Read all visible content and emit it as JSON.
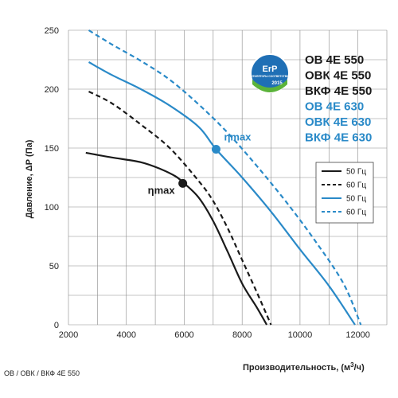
{
  "chart_data": {
    "type": "line",
    "xlabel": "Производительность, (м",
    "xlabel_sup": "3",
    "xlabel_tail": "/ч)",
    "ylabel": "Давление, ΔР (Па)",
    "xlim": [
      2000,
      13000
    ],
    "ylim": [
      0,
      250
    ],
    "x_ticks": [
      2000,
      4000,
      6000,
      8000,
      10000,
      12000
    ],
    "y_ticks": [
      0,
      50,
      100,
      150,
      200,
      250
    ],
    "grid": true,
    "colors": {
      "black": "#1a1a1a",
      "blue": "#2a8ac8"
    },
    "series": [
      {
        "name": "50 Гц",
        "color": "#1a1a1a",
        "dash": false,
        "points": [
          [
            2600,
            146
          ],
          [
            3500,
            142
          ],
          [
            4500,
            138
          ],
          [
            5200,
            132
          ],
          [
            5700,
            126
          ],
          [
            6000,
            120
          ],
          [
            6500,
            108
          ],
          [
            7000,
            88
          ],
          [
            7500,
            62
          ],
          [
            8000,
            35
          ],
          [
            8500,
            15
          ],
          [
            8850,
            0
          ]
        ]
      },
      {
        "name": "60 Гц",
        "color": "#1a1a1a",
        "dash": true,
        "points": [
          [
            2700,
            198
          ],
          [
            3500,
            188
          ],
          [
            4500,
            170
          ],
          [
            5500,
            150
          ],
          [
            6500,
            122
          ],
          [
            7000,
            105
          ],
          [
            7500,
            82
          ],
          [
            8000,
            55
          ],
          [
            8500,
            28
          ],
          [
            9000,
            0
          ]
        ]
      },
      {
        "name": "50 Гц",
        "color": "#2a8ac8",
        "dash": false,
        "points": [
          [
            2700,
            223
          ],
          [
            3500,
            212
          ],
          [
            4500,
            200
          ],
          [
            5500,
            186
          ],
          [
            6500,
            168
          ],
          [
            7100,
            149
          ],
          [
            8000,
            125
          ],
          [
            9000,
            96
          ],
          [
            10000,
            64
          ],
          [
            11000,
            33
          ],
          [
            11900,
            0
          ]
        ]
      },
      {
        "name": "60 Гц",
        "color": "#2a8ac8",
        "dash": true,
        "points": [
          [
            2700,
            250
          ],
          [
            3500,
            238
          ],
          [
            4500,
            224
          ],
          [
            5500,
            208
          ],
          [
            6500,
            187
          ],
          [
            7500,
            163
          ],
          [
            8500,
            135
          ],
          [
            9500,
            105
          ],
          [
            10500,
            72
          ],
          [
            11500,
            35
          ],
          [
            12100,
            0
          ]
        ]
      }
    ],
    "annotations": [
      {
        "text": "ηmax",
        "x": 5950,
        "y": 120,
        "color": "#1a1a1a"
      },
      {
        "text": "ηmax",
        "x": 7100,
        "y": 149,
        "color": "#2a8ac8"
      }
    ],
    "legend_position": "right"
  },
  "products": [
    {
      "text": "ОВ 4Е 550",
      "color": "#1a1a1a"
    },
    {
      "text": "ОВК 4Е 550",
      "color": "#1a1a1a"
    },
    {
      "text": "ВКФ 4Е 550",
      "color": "#1a1a1a"
    },
    {
      "text": "ОВ 4Е 630",
      "color": "#2a8ac8"
    },
    {
      "text": "ОВК 4Е 630",
      "color": "#2a8ac8"
    },
    {
      "text": "ВКФ 4Е 630",
      "color": "#2a8ac8"
    }
  ],
  "badge": {
    "top": "ErP",
    "middle": "ВЕНТИЛЯТОРЫ СООТВЕТСТВУЮТ",
    "year": "2015"
  },
  "footer": "ОВ / ОВК / ВКФ 4Е 550"
}
